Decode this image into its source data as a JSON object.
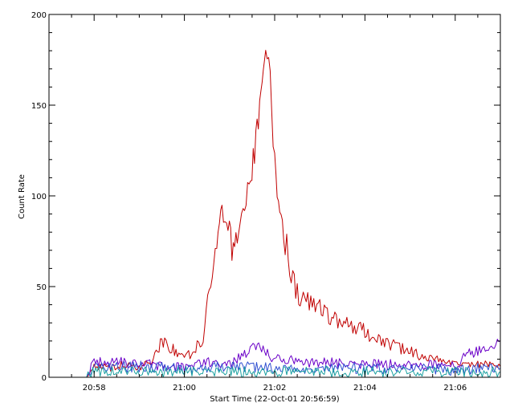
{
  "chart_data": {
    "type": "line",
    "xlabel": "Start Time (22-Oct-01 20:56:59)",
    "ylabel": "Count Rate",
    "xlim": [
      "20:57:00",
      "21:07:00"
    ],
    "ylim": [
      0,
      200
    ],
    "x_ticks": [
      "20:58",
      "21:00",
      "21:02",
      "21:04",
      "21:06"
    ],
    "y_ticks": [
      0,
      50,
      100,
      150,
      200
    ],
    "grid": false,
    "series": [
      {
        "color": "#c00000",
        "points": [
          [
            "20:57:50",
            0
          ],
          [
            "20:58:00",
            6
          ],
          [
            "20:58:20",
            5
          ],
          [
            "20:58:40",
            7
          ],
          [
            "20:59:00",
            6
          ],
          [
            "20:59:15",
            8
          ],
          [
            "20:59:30",
            20
          ],
          [
            "20:59:45",
            15
          ],
          [
            "21:00:00",
            10
          ],
          [
            "21:00:15",
            16
          ],
          [
            "21:00:25",
            22
          ],
          [
            "21:00:35",
            55
          ],
          [
            "21:00:43",
            75
          ],
          [
            "21:00:50",
            90
          ],
          [
            "21:00:58",
            82
          ],
          [
            "21:01:05",
            68
          ],
          [
            "21:01:12",
            78
          ],
          [
            "21:01:20",
            90
          ],
          [
            "21:01:28",
            110
          ],
          [
            "21:01:35",
            130
          ],
          [
            "21:01:40",
            150
          ],
          [
            "21:01:45",
            168
          ],
          [
            "21:01:48",
            185
          ],
          [
            "21:01:52",
            172
          ],
          [
            "21:01:56",
            150
          ],
          [
            "21:02:00",
            120
          ],
          [
            "21:02:05",
            100
          ],
          [
            "21:02:12",
            80
          ],
          [
            "21:02:20",
            62
          ],
          [
            "21:02:30",
            48
          ],
          [
            "21:02:40",
            40
          ],
          [
            "21:02:50",
            42
          ],
          [
            "21:03:00",
            38
          ],
          [
            "21:03:20",
            33
          ],
          [
            "21:03:40",
            30
          ],
          [
            "21:04:00",
            25
          ],
          [
            "21:04:20",
            20
          ],
          [
            "21:04:40",
            17
          ],
          [
            "21:05:00",
            14
          ],
          [
            "21:05:20",
            11
          ],
          [
            "21:05:40",
            10
          ],
          [
            "21:06:00",
            9
          ],
          [
            "21:06:20",
            7
          ],
          [
            "21:06:40",
            7
          ],
          [
            "21:07:00",
            6
          ]
        ]
      },
      {
        "color": "#6a00c8",
        "points": [
          [
            "20:57:50",
            0
          ],
          [
            "20:58:00",
            8
          ],
          [
            "20:59:00",
            8
          ],
          [
            "20:59:30",
            6
          ],
          [
            "21:00:00",
            5
          ],
          [
            "21:00:30",
            8
          ],
          [
            "21:01:00",
            7
          ],
          [
            "21:01:20",
            12
          ],
          [
            "21:01:35",
            18
          ],
          [
            "21:02:00",
            10
          ],
          [
            "21:03:00",
            8
          ],
          [
            "21:04:00",
            7
          ],
          [
            "21:05:00",
            7
          ],
          [
            "21:06:00",
            6
          ],
          [
            "21:06:15",
            12
          ],
          [
            "21:06:30",
            15
          ],
          [
            "21:07:00",
            20
          ]
        ]
      },
      {
        "color": "#2f4fd0",
        "points": [
          [
            "20:57:50",
            0
          ],
          [
            "20:58:00",
            5
          ],
          [
            "20:59:00",
            6
          ],
          [
            "21:00:00",
            5
          ],
          [
            "21:01:00",
            6
          ],
          [
            "21:02:00",
            5
          ],
          [
            "21:03:00",
            5
          ],
          [
            "21:04:00",
            5
          ],
          [
            "21:05:00",
            5
          ],
          [
            "21:06:00",
            4
          ],
          [
            "21:06:30",
            5
          ],
          [
            "21:07:00",
            5
          ]
        ]
      },
      {
        "color": "#1aa0a0",
        "points": [
          [
            "20:57:50",
            0
          ],
          [
            "20:58:00",
            3
          ],
          [
            "20:59:00",
            3
          ],
          [
            "21:00:00",
            3
          ],
          [
            "21:01:00",
            3
          ],
          [
            "21:02:00",
            3
          ],
          [
            "21:03:00",
            3
          ],
          [
            "21:04:00",
            3
          ],
          [
            "21:05:00",
            3
          ],
          [
            "21:06:00",
            3
          ],
          [
            "21:07:00",
            3
          ]
        ]
      }
    ]
  }
}
